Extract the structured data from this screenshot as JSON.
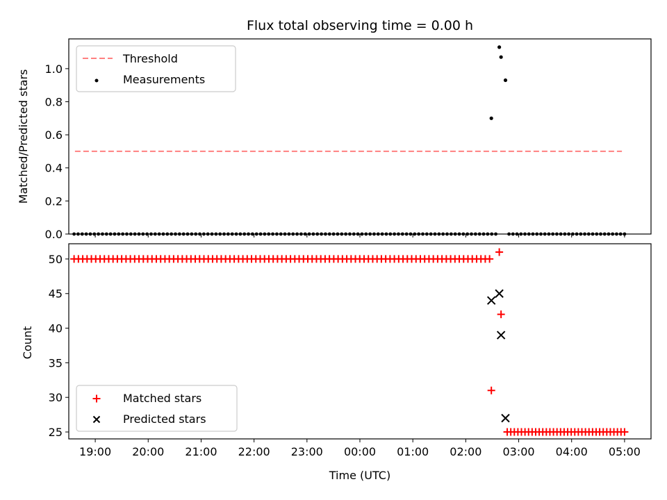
{
  "chart_data": [
    {
      "type": "scatter",
      "title": "Flux total observing time = 0.00 h",
      "ylabel": "Matched/Predicted stars",
      "xlabel": "",
      "xlim": [
        "18:30",
        "05:30"
      ],
      "ylim": [
        0,
        1.18
      ],
      "xticks": [
        "19:00",
        "20:00",
        "21:00",
        "22:00",
        "23:00",
        "00:00",
        "01:00",
        "02:00",
        "03:00",
        "04:00",
        "05:00"
      ],
      "yticks": [
        "0.0",
        "0.2",
        "0.4",
        "0.6",
        "0.8",
        "1.0"
      ],
      "grid": false,
      "legend_position": "upper-left",
      "threshold": {
        "name": "Threshold",
        "value": 0.5,
        "start": "18:37",
        "end": "04:57",
        "color": "#ff8080"
      },
      "measurements": {
        "name": "Measurements",
        "color": "#000000",
        "zero_run_1": {
          "start": "18:36",
          "end": "02:34",
          "count": 105,
          "value": 0
        },
        "zero_run_2": {
          "start": "02:49",
          "end": "05:00",
          "count": 30,
          "value": 0
        },
        "peak_points": [
          {
            "x": "02:29",
            "y": 0.7
          },
          {
            "x": "02:38",
            "y": 1.13
          },
          {
            "x": "02:40",
            "y": 1.07
          },
          {
            "x": "02:45",
            "y": 0.93
          }
        ]
      }
    },
    {
      "type": "scatter",
      "title": "",
      "xlabel": "Time (UTC)",
      "ylabel": "Count",
      "xlim": [
        "18:30",
        "05:30"
      ],
      "ylim": [
        24,
        52.2
      ],
      "xticks": [
        "19:00",
        "20:00",
        "21:00",
        "22:00",
        "23:00",
        "00:00",
        "01:00",
        "02:00",
        "03:00",
        "04:00",
        "05:00"
      ],
      "yticks": [
        "25",
        "30",
        "35",
        "40",
        "45",
        "50"
      ],
      "grid": false,
      "legend_position": "lower-left",
      "matched": {
        "name": "Matched stars",
        "color": "#ff0000",
        "run_1": {
          "start": "18:36",
          "end": "02:27",
          "count": 97,
          "value": 50
        },
        "run_2": {
          "start": "02:47",
          "end": "05:00",
          "count": 34,
          "value": 25
        },
        "points": [
          {
            "x": "02:29",
            "y": 31
          },
          {
            "x": "02:38",
            "y": 51
          },
          {
            "x": "02:40",
            "y": 42
          }
        ]
      },
      "predicted": {
        "name": "Predicted stars",
        "color": "#000000",
        "points": [
          {
            "x": "02:29",
            "y": 44
          },
          {
            "x": "02:38",
            "y": 45
          },
          {
            "x": "02:40",
            "y": 39
          },
          {
            "x": "02:45",
            "y": 27
          }
        ]
      }
    }
  ]
}
